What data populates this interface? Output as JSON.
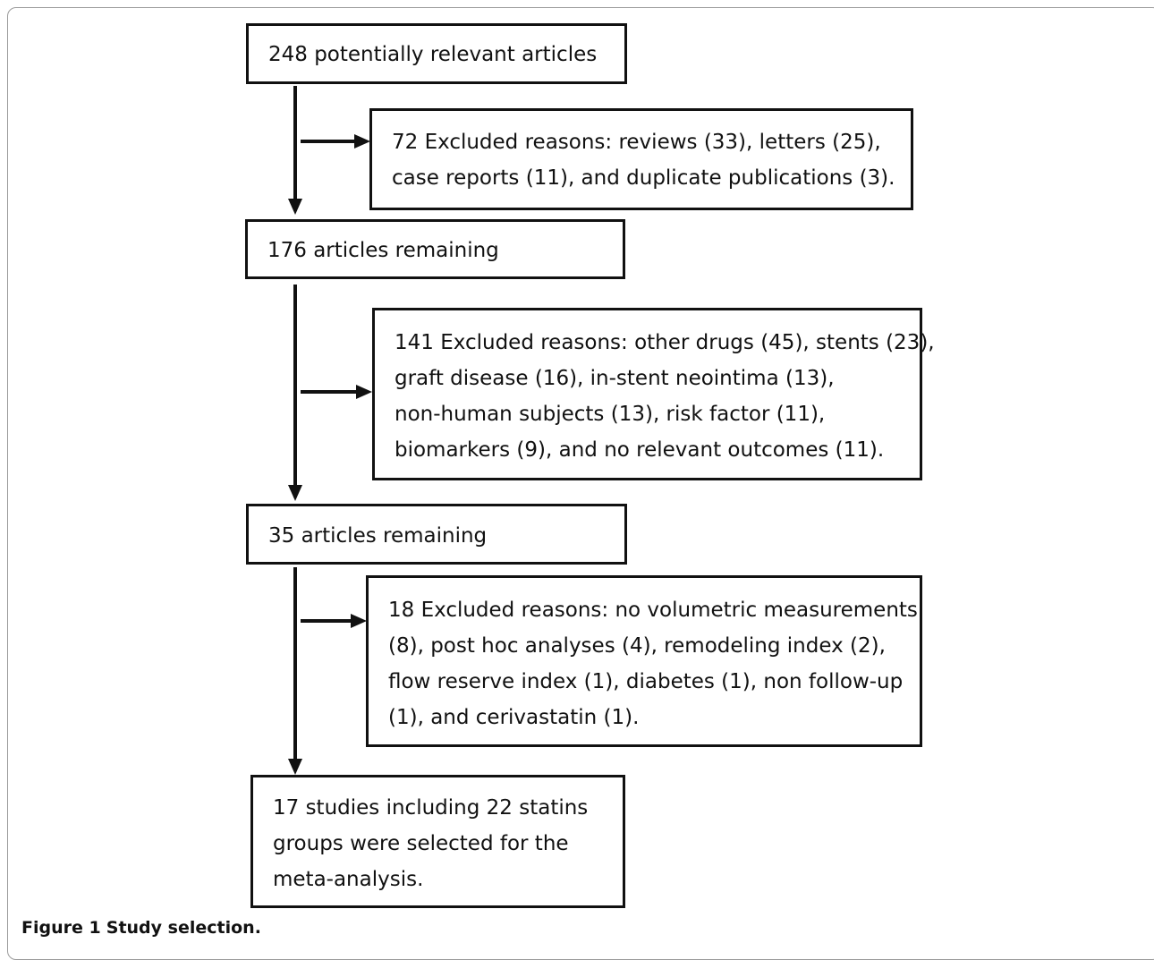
{
  "diagram": {
    "boxes": [
      {
        "id": "box1",
        "lines": [
          "248 potentially relevant articles"
        ]
      },
      {
        "id": "excl1",
        "lines": [
          "72 Excluded reasons: reviews (33), letters (25),",
          "case reports (11), and duplicate publications (3)."
        ]
      },
      {
        "id": "box2",
        "lines": [
          "176 articles remaining"
        ]
      },
      {
        "id": "excl2",
        "lines": [
          "141 Excluded reasons: other drugs (45), stents (23),",
          "graft disease (16), in-stent neointima (13),",
          "non-human subjects (13), risk factor (11),",
          "biomarkers (9), and no relevant outcomes (11)."
        ]
      },
      {
        "id": "box3",
        "lines": [
          "35 articles remaining"
        ]
      },
      {
        "id": "excl3",
        "lines": [
          "18 Excluded reasons: no volumetric measurements",
          "(8), post hoc analyses (4), remodeling index (2),",
          "flow reserve index (1), diabetes (1), non follow-up",
          "(1), and cerivastatin (1)."
        ]
      },
      {
        "id": "box4",
        "lines": [
          "17 studies including 22 statins",
          "groups were selected for the",
          "meta-analysis."
        ]
      }
    ]
  },
  "caption": {
    "label": "Figure 1",
    "text": "Study selection."
  }
}
